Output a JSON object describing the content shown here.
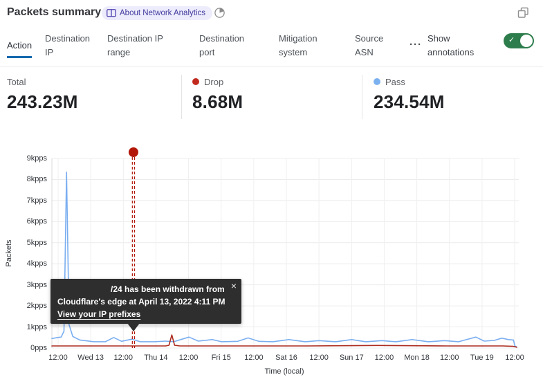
{
  "header": {
    "title": "Packets summary",
    "badge_label": "About Network Analytics",
    "icons": {
      "book": "book-icon",
      "time": "time-range-icon",
      "popout": "popout-icon"
    }
  },
  "tabs": [
    {
      "label": "Action",
      "active": true
    },
    {
      "label": "Destination IP",
      "active": false
    },
    {
      "label": "Destination IP range",
      "active": false
    },
    {
      "label": "Destination port",
      "active": false
    },
    {
      "label": "Mitigation system",
      "active": false
    },
    {
      "label": "Source ASN",
      "active": false
    }
  ],
  "more_tabs_label": "···",
  "annotations_toggle": {
    "label": "Show annotations",
    "enabled": true,
    "check_glyph": "✓"
  },
  "stats": [
    {
      "label": "Total",
      "value": "243.23M",
      "dot_color": ""
    },
    {
      "label": "Drop",
      "value": "8.68M",
      "dot_color": "#c22a20"
    },
    {
      "label": "Pass",
      "value": "234.54M",
      "dot_color": "#7cb1f0"
    }
  ],
  "tooltip": {
    "line1": "/24 has been withdrawn from",
    "line2": "Cloudflare's edge at April 13, 2022 4:11 PM",
    "link": "View your IP prefixes",
    "close_glyph": "×"
  },
  "colors": {
    "tab_accent_blue": "#1569ad",
    "toggle_green": "#2d7d4c",
    "pass_blue": "#7aaef0",
    "drop_red": "#ab2a1e",
    "annotation_red": "#b21708"
  },
  "chart_data": {
    "type": "line",
    "title": "Packets summary",
    "xlabel": "Time (local)",
    "ylabel": "Packets",
    "unit": "kpps",
    "ylim": [
      0,
      9
    ],
    "grid": true,
    "y_ticks": [
      "0pps",
      "1kpps",
      "2kpps",
      "3kpps",
      "4kpps",
      "5kpps",
      "6kpps",
      "7kpps",
      "8kpps",
      "9kpps"
    ],
    "x_ticks": [
      "12:00",
      "Wed 13",
      "12:00",
      "Thu 14",
      "12:00",
      "Fri 15",
      "12:00",
      "Sat 16",
      "12:00",
      "Sun 17",
      "12:00",
      "Mon 18",
      "12:00",
      "Tue 19",
      "12:00"
    ],
    "series": [
      {
        "name": "Pass",
        "color": "#7aaef0",
        "total": "234.54M",
        "points": [
          [
            0,
            0.45
          ],
          [
            0.012,
            0.5
          ],
          [
            0.02,
            0.52
          ],
          [
            0.026,
            0.8
          ],
          [
            0.0315,
            8.35
          ],
          [
            0.037,
            1.1
          ],
          [
            0.045,
            0.55
          ],
          [
            0.06,
            0.38
          ],
          [
            0.09,
            0.3
          ],
          [
            0.115,
            0.3
          ],
          [
            0.133,
            0.5
          ],
          [
            0.15,
            0.32
          ],
          [
            0.172,
            0.42
          ],
          [
            0.19,
            0.3
          ],
          [
            0.22,
            0.3
          ],
          [
            0.245,
            0.33
          ],
          [
            0.262,
            0.3
          ],
          [
            0.295,
            0.52
          ],
          [
            0.315,
            0.33
          ],
          [
            0.345,
            0.4
          ],
          [
            0.365,
            0.3
          ],
          [
            0.4,
            0.32
          ],
          [
            0.422,
            0.48
          ],
          [
            0.445,
            0.32
          ],
          [
            0.475,
            0.3
          ],
          [
            0.51,
            0.4
          ],
          [
            0.545,
            0.3
          ],
          [
            0.575,
            0.35
          ],
          [
            0.61,
            0.3
          ],
          [
            0.645,
            0.4
          ],
          [
            0.675,
            0.3
          ],
          [
            0.71,
            0.35
          ],
          [
            0.74,
            0.3
          ],
          [
            0.775,
            0.4
          ],
          [
            0.81,
            0.3
          ],
          [
            0.845,
            0.35
          ],
          [
            0.875,
            0.3
          ],
          [
            0.912,
            0.52
          ],
          [
            0.93,
            0.33
          ],
          [
            0.952,
            0.36
          ],
          [
            0.968,
            0.47
          ],
          [
            0.982,
            0.4
          ],
          [
            0.993,
            0.38
          ],
          [
            0.996,
            0.1
          ],
          [
            1,
            0.05
          ]
        ]
      },
      {
        "name": "Drop",
        "color": "#ab2a1e",
        "total": "8.68M",
        "points": [
          [
            0,
            0.1
          ],
          [
            0.1,
            0.1
          ],
          [
            0.2,
            0.1
          ],
          [
            0.245,
            0.1
          ],
          [
            0.252,
            0.13
          ],
          [
            0.258,
            0.62
          ],
          [
            0.264,
            0.13
          ],
          [
            0.275,
            0.1
          ],
          [
            0.4,
            0.1
          ],
          [
            0.55,
            0.1
          ],
          [
            0.7,
            0.12
          ],
          [
            0.85,
            0.1
          ],
          [
            0.97,
            0.1
          ],
          [
            0.993,
            0.08
          ],
          [
            1,
            0.04
          ]
        ]
      }
    ],
    "annotation": {
      "x_fraction": 0.1755,
      "color": "#b21708",
      "label": "/24 has been withdrawn from Cloudflare's edge at April 13, 2022 4:11 PM"
    }
  }
}
